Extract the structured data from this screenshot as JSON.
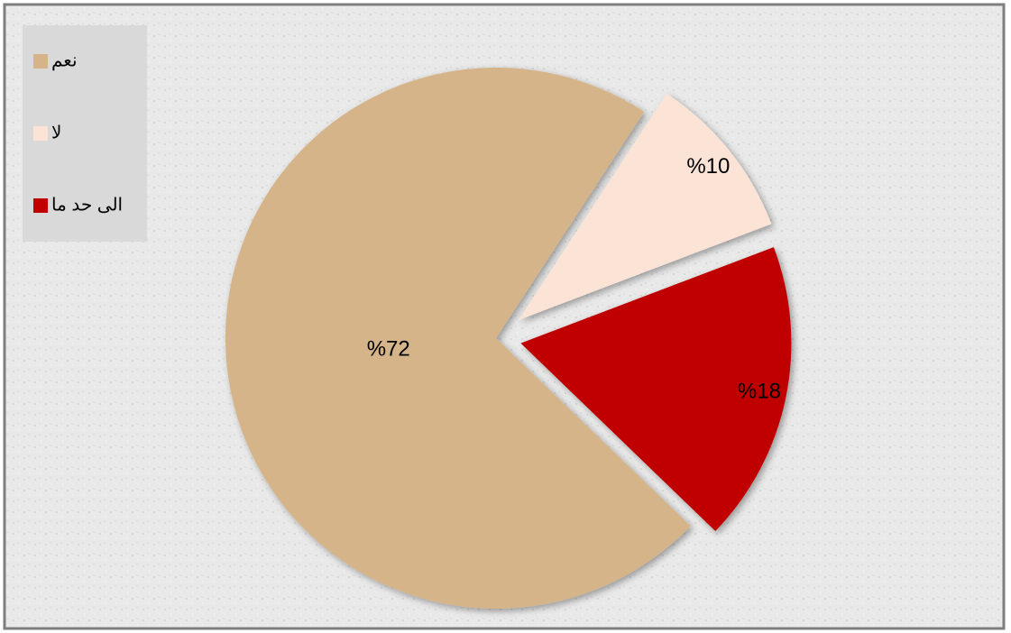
{
  "chart_data": {
    "type": "pie",
    "categories": [
      "نعم",
      "لا",
      "الى حد ما"
    ],
    "values": [
      72,
      10,
      18
    ],
    "value_labels": [
      "%72",
      "%10",
      "%18"
    ],
    "colors": [
      "#d6b489",
      "#fbe3d6",
      "#c00000"
    ],
    "legend": "top-left"
  }
}
